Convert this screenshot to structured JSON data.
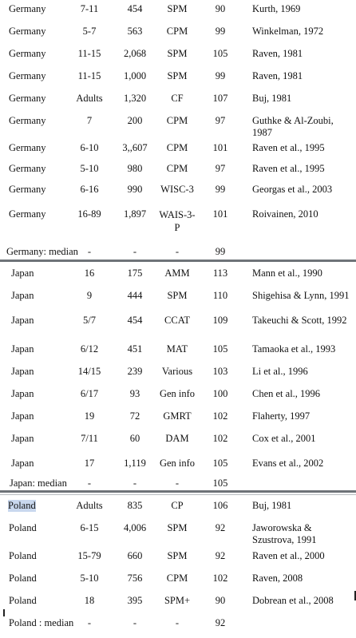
{
  "germany_rows": [
    {
      "country": "Germany",
      "age": "7-11",
      "n": "454",
      "test": "SPM",
      "iq": "90",
      "ref": "Kurth, 1969"
    },
    {
      "country": "Germany",
      "age": "5-7",
      "n": "563",
      "test": "CPM",
      "iq": "99",
      "ref": "Winkelman, 1972"
    },
    {
      "country": "Germany",
      "age": "11-15",
      "n": "2,068",
      "test": "SPM",
      "iq": "105",
      "ref": "Raven, 1981"
    },
    {
      "country": "Germany",
      "age": "11-15",
      "n": "1,000",
      "test": "SPM",
      "iq": "99",
      "ref": "Raven, 1981"
    },
    {
      "country": "Germany",
      "age": "Adults",
      "n": "1,320",
      "test": "CF",
      "iq": "107",
      "ref": "Buj, 1981"
    },
    {
      "country": "Germany",
      "age": "7",
      "n": "200",
      "test": "CPM",
      "iq": "97",
      "ref": "Guthke & Al-Zoubi, 1987"
    },
    {
      "country": "Germany",
      "age": "6-10",
      "n": "3,,607",
      "test": "CPM",
      "iq": "101",
      "ref": "Raven et al., 1995"
    },
    {
      "country": "Germany",
      "age": "5-10",
      "n": "980",
      "test": "CPM",
      "iq": "97",
      "ref": "Raven et al., 1995"
    },
    {
      "country": "Germany",
      "age": "6-16",
      "n": "990",
      "test": "WISC-3",
      "iq": "99",
      "ref": "Georgas et al., 2003"
    },
    {
      "country": "Germany",
      "age": "16-89",
      "n": "1,897",
      "test": "WAIS-3-P",
      "iq": "101",
      "ref": "Roivainen, 2010"
    }
  ],
  "germany_median": {
    "label": "Germany: median",
    "age": "-",
    "n": "-",
    "test": "-",
    "iq": "99"
  },
  "japan_rows": [
    {
      "country": "Japan",
      "age": "16",
      "n": "175",
      "test": "AMM",
      "iq": "113",
      "ref": "Mann et al., 1990"
    },
    {
      "country": "Japan",
      "age": "9",
      "n": "444",
      "test": "SPM",
      "iq": "110",
      "ref": "Shigehisa & Lynn, 1991"
    },
    {
      "country": "Japan",
      "age": "5/7",
      "n": "454",
      "test": "CCAT",
      "iq": "109",
      "ref": "Takeuchi & Scott, 1992"
    },
    {
      "country": "Japan",
      "age": "6/12",
      "n": "451",
      "test": "MAT",
      "iq": "105",
      "ref": "Tamaoka et al., 1993"
    },
    {
      "country": "Japan",
      "age": "14/15",
      "n": "239",
      "test": "Various",
      "iq": "103",
      "ref": "Li et al., 1996"
    },
    {
      "country": "Japan",
      "age": "6/17",
      "n": "93",
      "test": "Gen info",
      "iq": "100",
      "ref": "Chen et al., 1996"
    },
    {
      "country": "Japan",
      "age": "19",
      "n": "72",
      "test": "GMRT",
      "iq": "102",
      "ref": "Flaherty, 1997"
    },
    {
      "country": "Japan",
      "age": "7/11",
      "n": "60",
      "test": "DAM",
      "iq": "102",
      "ref": "Cox et al., 2001"
    },
    {
      "country": "Japan",
      "age": "17",
      "n": "1,119",
      "test": "Gen info",
      "iq": "105",
      "ref": "Evans et al., 2002"
    }
  ],
  "japan_median": {
    "label": "Japan: median",
    "age": "-",
    "n": "-",
    "test": "-",
    "iq": "105"
  },
  "poland_rows": [
    {
      "country": "Poland",
      "age": "Adults",
      "n": "835",
      "test": "CP",
      "iq": "106",
      "ref": "Buj, 1981"
    },
    {
      "country": "Poland",
      "age": "6-15",
      "n": "4,006",
      "test": "SPM",
      "iq": "92",
      "ref": "Jaworowska & Szustrova, 1991"
    },
    {
      "country": "Poland",
      "age": "15-79",
      "n": "660",
      "test": "SPM",
      "iq": "92",
      "ref": "Raven et al., 2000"
    },
    {
      "country": "Poland",
      "age": "5-10",
      "n": "756",
      "test": "CPM",
      "iq": "102",
      "ref": "Raven, 2008"
    },
    {
      "country": "Poland",
      "age": "18",
      "n": "395",
      "test": "SPM+",
      "iq": "90",
      "ref": "Dobrean et al., 2008"
    }
  ],
  "poland_median": {
    "label": "Poland : median",
    "age": "-",
    "n": "-",
    "test": "-",
    "iq": "92"
  }
}
